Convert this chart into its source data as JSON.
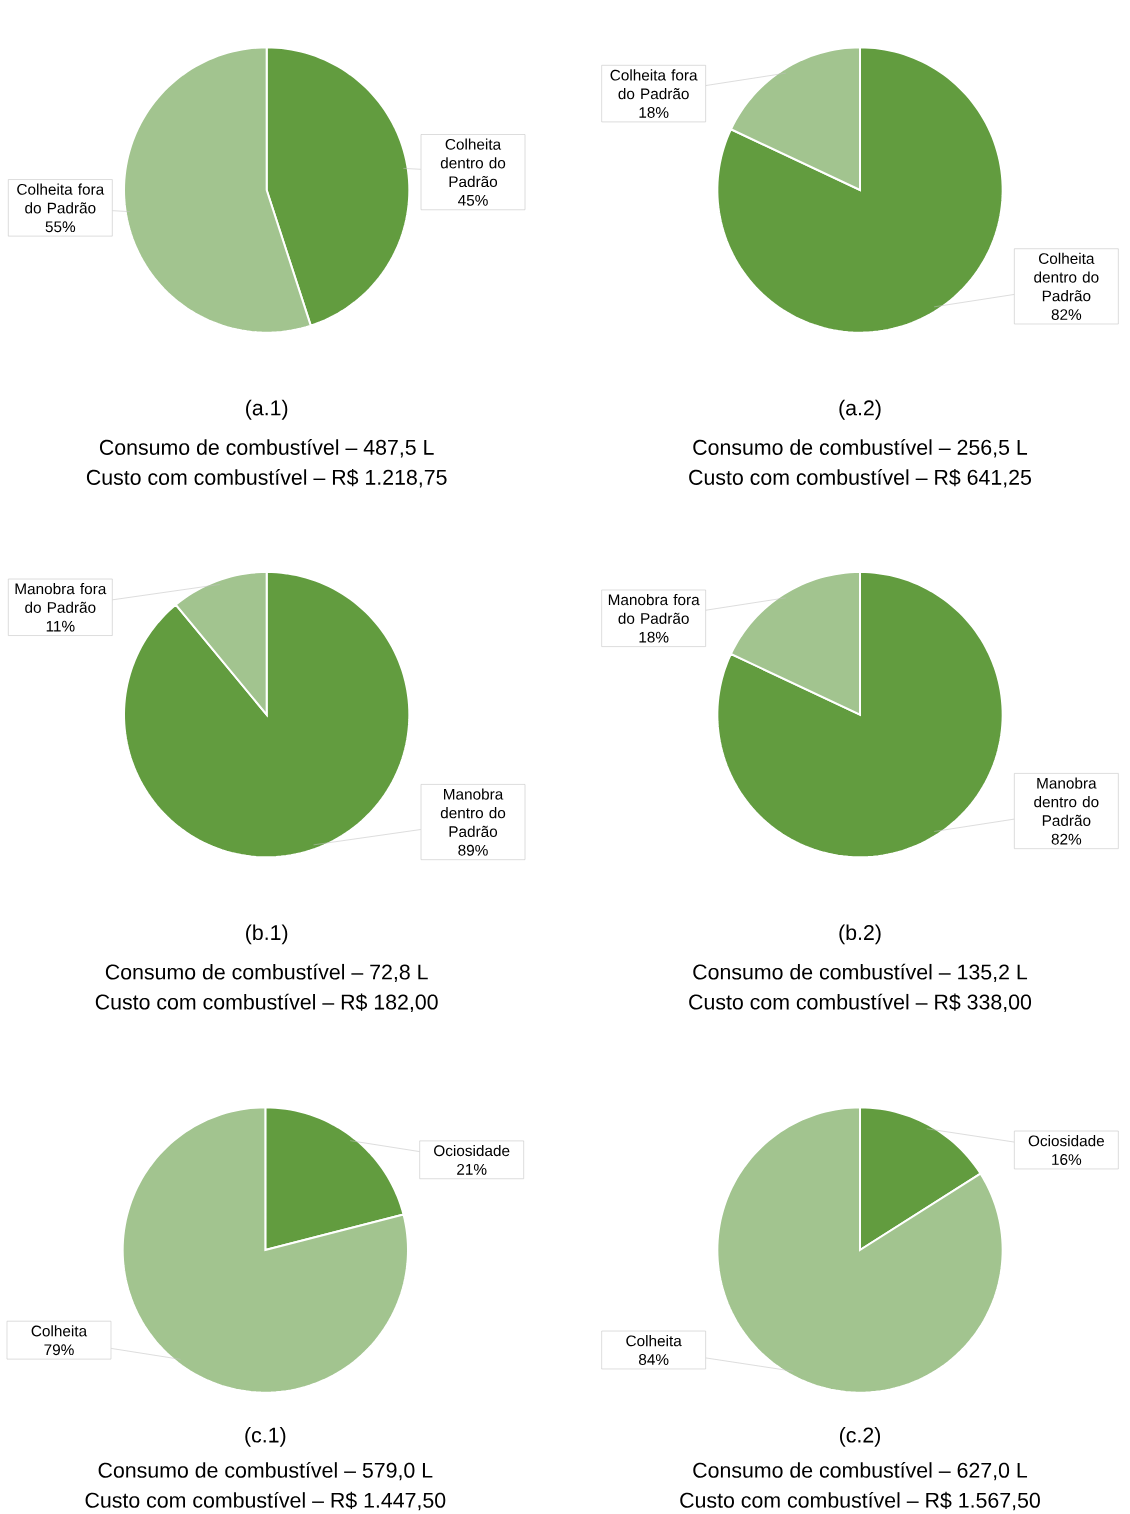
{
  "chart_data": [
    {
      "type": "pie",
      "categories": [
        "Colheita dentro do Padrão",
        "Colheita fora do Padrão"
      ],
      "values": [
        45,
        55
      ],
      "value_labels": [
        "45%",
        "55%"
      ],
      "colors": [
        "#629c3f",
        "#a2c48f"
      ],
      "annotations": [
        "(a.1)",
        "Consumo de combustível – 487,5 L",
        "Custo com combustível – R$ 1.218,75"
      ]
    },
    {
      "type": "pie",
      "categories": [
        "Colheita dentro do Padrão",
        "Colheita fora do Padrão"
      ],
      "values": [
        82,
        18
      ],
      "value_labels": [
        "82%",
        "18%"
      ],
      "colors": [
        "#629c3f",
        "#a2c48f"
      ],
      "annotations": [
        "(a.2)",
        "Consumo de combustível – 256,5 L",
        "Custo com combustível – R$ 641,25"
      ]
    },
    {
      "type": "pie",
      "categories": [
        "Manobra dentro do Padrão",
        "Manobra fora do Padrão"
      ],
      "values": [
        89,
        11
      ],
      "value_labels": [
        "89%",
        "11%"
      ],
      "colors": [
        "#629c3f",
        "#a2c48f"
      ],
      "annotations": [
        "(b.1)",
        "Consumo de combustível – 72,8 L",
        "Custo com combustível – R$ 182,00"
      ]
    },
    {
      "type": "pie",
      "categories": [
        "Manobra dentro do Padrão",
        "Manobra fora do Padrão"
      ],
      "values": [
        82,
        18
      ],
      "value_labels": [
        "82%",
        "18%"
      ],
      "colors": [
        "#629c3f",
        "#a2c48f"
      ],
      "annotations": [
        "(b.2)",
        "Consumo de combustível – 135,2 L",
        "Custo com combustível – R$ 338,00"
      ]
    },
    {
      "type": "pie",
      "categories": [
        "Ociosidade",
        "Colheita"
      ],
      "values": [
        21,
        79
      ],
      "value_labels": [
        "21%",
        "79%"
      ],
      "colors": [
        "#629c3f",
        "#a2c48f"
      ],
      "annotations": [
        "(c.1)",
        "Consumo de combustível – 579,0 L",
        "Custo com combustível – R$ 1.447,50"
      ]
    },
    {
      "type": "pie",
      "categories": [
        "Ociosidade",
        "Colheita"
      ],
      "values": [
        16,
        84
      ],
      "value_labels": [
        "16%",
        "84%"
      ],
      "colors": [
        "#629c3f",
        "#a2c48f"
      ],
      "annotations": [
        "(c.2)",
        "Consumo de combustível – 627,0 L",
        "Custo com combustível – R$ 1.567,50"
      ]
    }
  ]
}
